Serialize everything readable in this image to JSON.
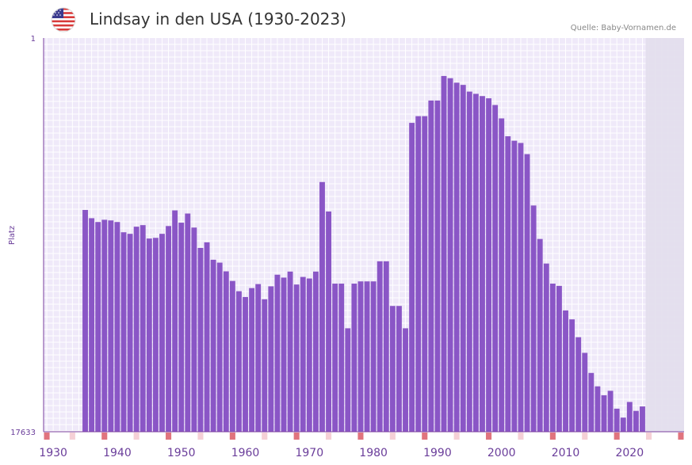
{
  "header": {
    "title": "Lindsay in den USA (1930-2023)",
    "source": "Quelle: Baby-Vornamen.de"
  },
  "colors": {
    "bar": "#8a56c6",
    "plot_bg": "#efe9f9",
    "grid": "#ffffff",
    "future_shade": "#e2deec",
    "axis": "#7a3e9e",
    "tick_text": "#6a3d9a",
    "marker_strong": "#e0747e",
    "marker_light": "#f5d0d6"
  },
  "chart_data": {
    "type": "bar",
    "title": "Lindsay in den USA (1930-2023)",
    "xlabel": "",
    "ylabel": "Platz",
    "y_axis_inverted": true,
    "ylim": [
      1,
      17633
    ],
    "y_tick_labels": [
      "1",
      "17633"
    ],
    "xlim": [
      1929,
      2029
    ],
    "x_tick_labels": [
      "1930",
      "1940",
      "1950",
      "1960",
      "1970",
      "1980",
      "1990",
      "2000",
      "2010",
      "2020"
    ],
    "x_ticks": [
      1930,
      1940,
      1950,
      1960,
      1970,
      1980,
      1990,
      2000,
      2010,
      2020
    ],
    "future_shaded_from": 2023,
    "years": [
      1935,
      1936,
      1937,
      1938,
      1939,
      1940,
      1941,
      1942,
      1943,
      1944,
      1945,
      1946,
      1947,
      1948,
      1949,
      1950,
      1951,
      1952,
      1953,
      1954,
      1955,
      1956,
      1957,
      1958,
      1959,
      1960,
      1961,
      1962,
      1963,
      1964,
      1965,
      1966,
      1967,
      1968,
      1969,
      1970,
      1971,
      1972,
      1973,
      1974,
      1975,
      1976,
      1977,
      1978,
      1979,
      1980,
      1981,
      1982,
      1983,
      1984,
      1985,
      1986,
      1987,
      1988,
      1989,
      1990,
      1991,
      1992,
      1993,
      1994,
      1995,
      1996,
      1997,
      1998,
      1999,
      2000,
      2001,
      2002,
      2003,
      2004,
      2005,
      2006,
      2007,
      2008,
      2009,
      2010,
      2011,
      2012,
      2013,
      2014,
      2015,
      2016,
      2017,
      2018,
      2019,
      2020,
      2021,
      2022
    ],
    "ranks": [
      7700,
      8070,
      8240,
      8140,
      8170,
      8240,
      8700,
      8770,
      8450,
      8380,
      8980,
      8950,
      8770,
      8420,
      7720,
      8270,
      7860,
      8490,
      9400,
      9150,
      9930,
      10060,
      10450,
      10880,
      11340,
      11600,
      11200,
      11020,
      11700,
      11120,
      10600,
      10730,
      10460,
      11040,
      10700,
      10770,
      10460,
      6450,
      7770,
      11000,
      11000,
      13000,
      11000,
      10900,
      10900,
      10900,
      10000,
      10000,
      12000,
      12000,
      13000,
      3800,
      3500,
      3500,
      2800,
      2800,
      1700,
      1800,
      2000,
      2100,
      2400,
      2500,
      2600,
      2700,
      3000,
      3600,
      4400,
      4600,
      4700,
      5200,
      7500,
      9000,
      10100,
      11000,
      11100,
      12200,
      12600,
      13400,
      14100,
      15000,
      15600,
      16000,
      15800,
      16600,
      17000,
      16300,
      16700,
      16500
    ],
    "year_markers_strong": [
      1929,
      1938,
      1948,
      1958,
      1968,
      1978,
      1988,
      1998,
      2008,
      2018,
      2028
    ],
    "year_markers_light": [
      1933,
      1943,
      1953,
      1963,
      1973,
      1983,
      1993,
      2003,
      2013,
      2023
    ]
  }
}
